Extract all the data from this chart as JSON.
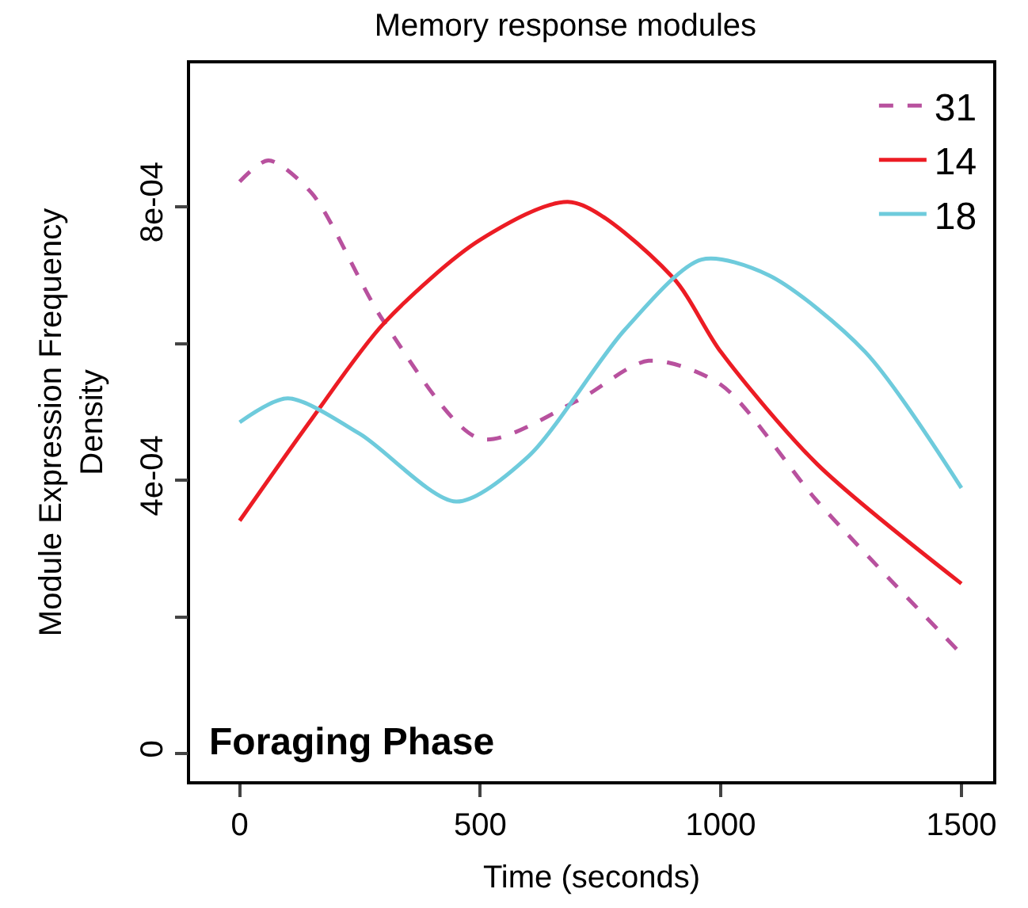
{
  "chart_data": {
    "type": "line",
    "title": "Memory response modules",
    "xlabel": "Time (seconds)",
    "ylabel": "Module Expression Frequency\nDensity",
    "xlim": [
      -103,
      1566
    ],
    "xticks": [
      0,
      500,
      1000,
      1500
    ],
    "ylim": [
      -4e-05,
      0.00101
    ],
    "yticks": [
      {
        "value": 0,
        "label": "0"
      },
      {
        "value": 0.0002,
        "label": null
      },
      {
        "value": 0.0004,
        "label": "4e-04"
      },
      {
        "value": 0.0006,
        "label": null
      },
      {
        "value": 0.0008,
        "label": "8e-04"
      }
    ],
    "legend": "top right",
    "marker": "none",
    "annotations": [
      "Foraging Phase"
    ],
    "series": [
      {
        "name": "31",
        "color": "#b8519e",
        "line_style": "dashed",
        "x": [
          0,
          60,
          150,
          300,
          500,
          700,
          850,
          1000,
          1200,
          1500
        ],
        "values": [
          0.000837,
          0.000868,
          0.00082,
          0.000632,
          0.000461,
          0.000516,
          0.000575,
          0.00054,
          0.00037,
          0.000146
        ]
      },
      {
        "name": "14",
        "color": "#ec1c24",
        "line_style": "solid",
        "x": [
          0,
          150,
          300,
          500,
          690,
          900,
          1000,
          1200,
          1500
        ],
        "values": [
          0.000341,
          0.00049,
          0.00063,
          0.000752,
          0.000807,
          0.000697,
          0.000588,
          0.000424,
          0.000249
        ]
      },
      {
        "name": "18",
        "color": "#6ecbdc",
        "line_style": "solid",
        "x": [
          0,
          100,
          250,
          450,
          600,
          800,
          960,
          1100,
          1300,
          1500
        ],
        "values": [
          0.000485,
          0.00052,
          0.000468,
          0.000369,
          0.000435,
          0.00062,
          0.000723,
          0.0007,
          0.000588,
          0.000389
        ]
      }
    ]
  }
}
